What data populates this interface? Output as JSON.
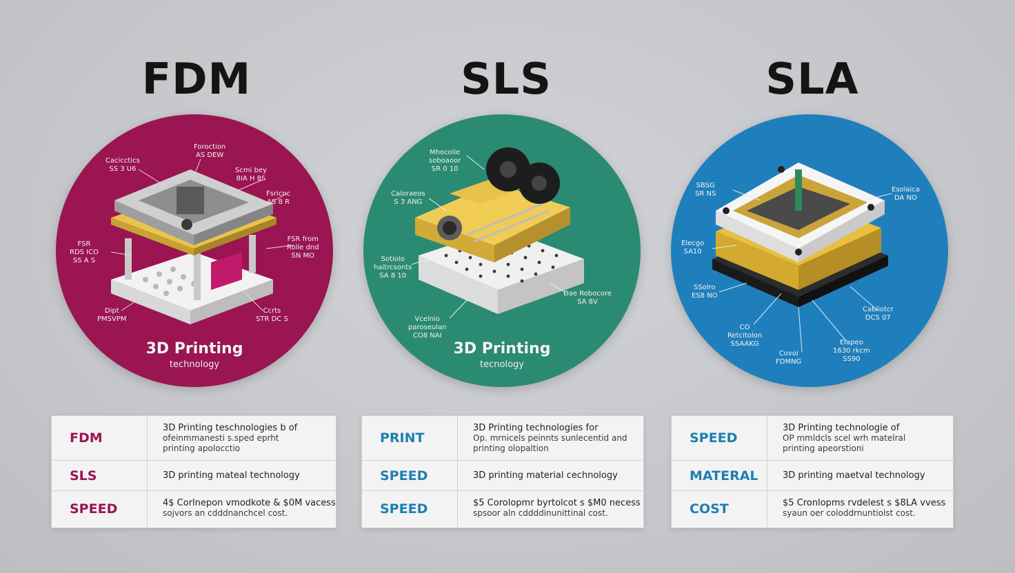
{
  "colors": {
    "fdm": "#9a1552",
    "sls": "#2b8a72",
    "sla": "#1f7fbd",
    "sls_text": "#1e7fb0",
    "sla_text": "#1e7fb0"
  },
  "columns": [
    {
      "title": "FDM",
      "circle_title": "3D Printing",
      "circle_subtitle": "technology",
      "labels": [
        "Cacicctics\nSS 3 U6",
        "Foroction\nAS DEW",
        "Scmi bey\n8IA H 8S",
        "Fsricnc\nAS 8 R",
        "FSR\nRDS ICO\nSS A S",
        "FSR from\nRolle dnd\nSN MO",
        "Dipt\nPMSVPM",
        "Ccrts\nSTR DC S"
      ],
      "rows": [
        {
          "label": "FDM",
          "lines": [
            "3D Printing teschnologies b of",
            "ofeinmmanesti s.sped eprht",
            "printing apolocctio"
          ]
        },
        {
          "label": "SLS",
          "lines": [
            "3D printing mateal technology"
          ]
        },
        {
          "label": "SPEED",
          "lines": [
            "4$ Corlnepon vmodkote & $0M vacess",
            "sojvors an cdddnanchcel cost."
          ]
        }
      ]
    },
    {
      "title": "SLS",
      "circle_title": "3D Printing",
      "circle_subtitle": "tecnology",
      "labels": [
        "Mhocolie\nsoboaoor\nSR 0 10",
        "Caloraeos\nS 3 ANG",
        "Sotiolo\nhaitrcsonts\nSA 8 10",
        "Dae Robocore\nSA 8V",
        "Vcelnio\nparoseulan\nCO8 NAI"
      ],
      "rows": [
        {
          "label": "PRINT",
          "lines": [
            "3D Printing technologies for",
            "Op. mrnicels peinnts sunlecentid and",
            "printing olopaltion"
          ]
        },
        {
          "label": "SPEED",
          "lines": [
            "3D printing material cechnology"
          ]
        },
        {
          "label": "SPEED",
          "lines": [
            "$5 Corolopmr byrtolcot s $M0 necess",
            "spsoor aln cddddinunittinal cost."
          ]
        }
      ]
    },
    {
      "title": "SLA",
      "circle_title": "",
      "circle_subtitle": "",
      "labels": [
        "SBSG\nSR NS",
        "Esolaica\nDA NO",
        "Elecgo\nSA10",
        "SSolro\nES8 NO",
        "Cabliotcr\nDCS 07",
        "CO\nRetcitolon\nSSAAKG",
        "Covoi\nFDMNG",
        "Elapeo\n1630 rkcm\nSS90"
      ],
      "rows": [
        {
          "label": "SPEED",
          "lines": [
            "3D Printing technologie of",
            "OP mmldcls scel   wrh matelral",
            "printing apeorstioni"
          ]
        },
        {
          "label": "MATERAL",
          "lines": [
            "3D printing maetval technology"
          ]
        },
        {
          "label": "COST",
          "lines": [
            "$5 Cronlopms rvdelest s $8LA vvess",
            "syaun oer coloddrnuntiolst cost."
          ]
        }
      ]
    }
  ]
}
